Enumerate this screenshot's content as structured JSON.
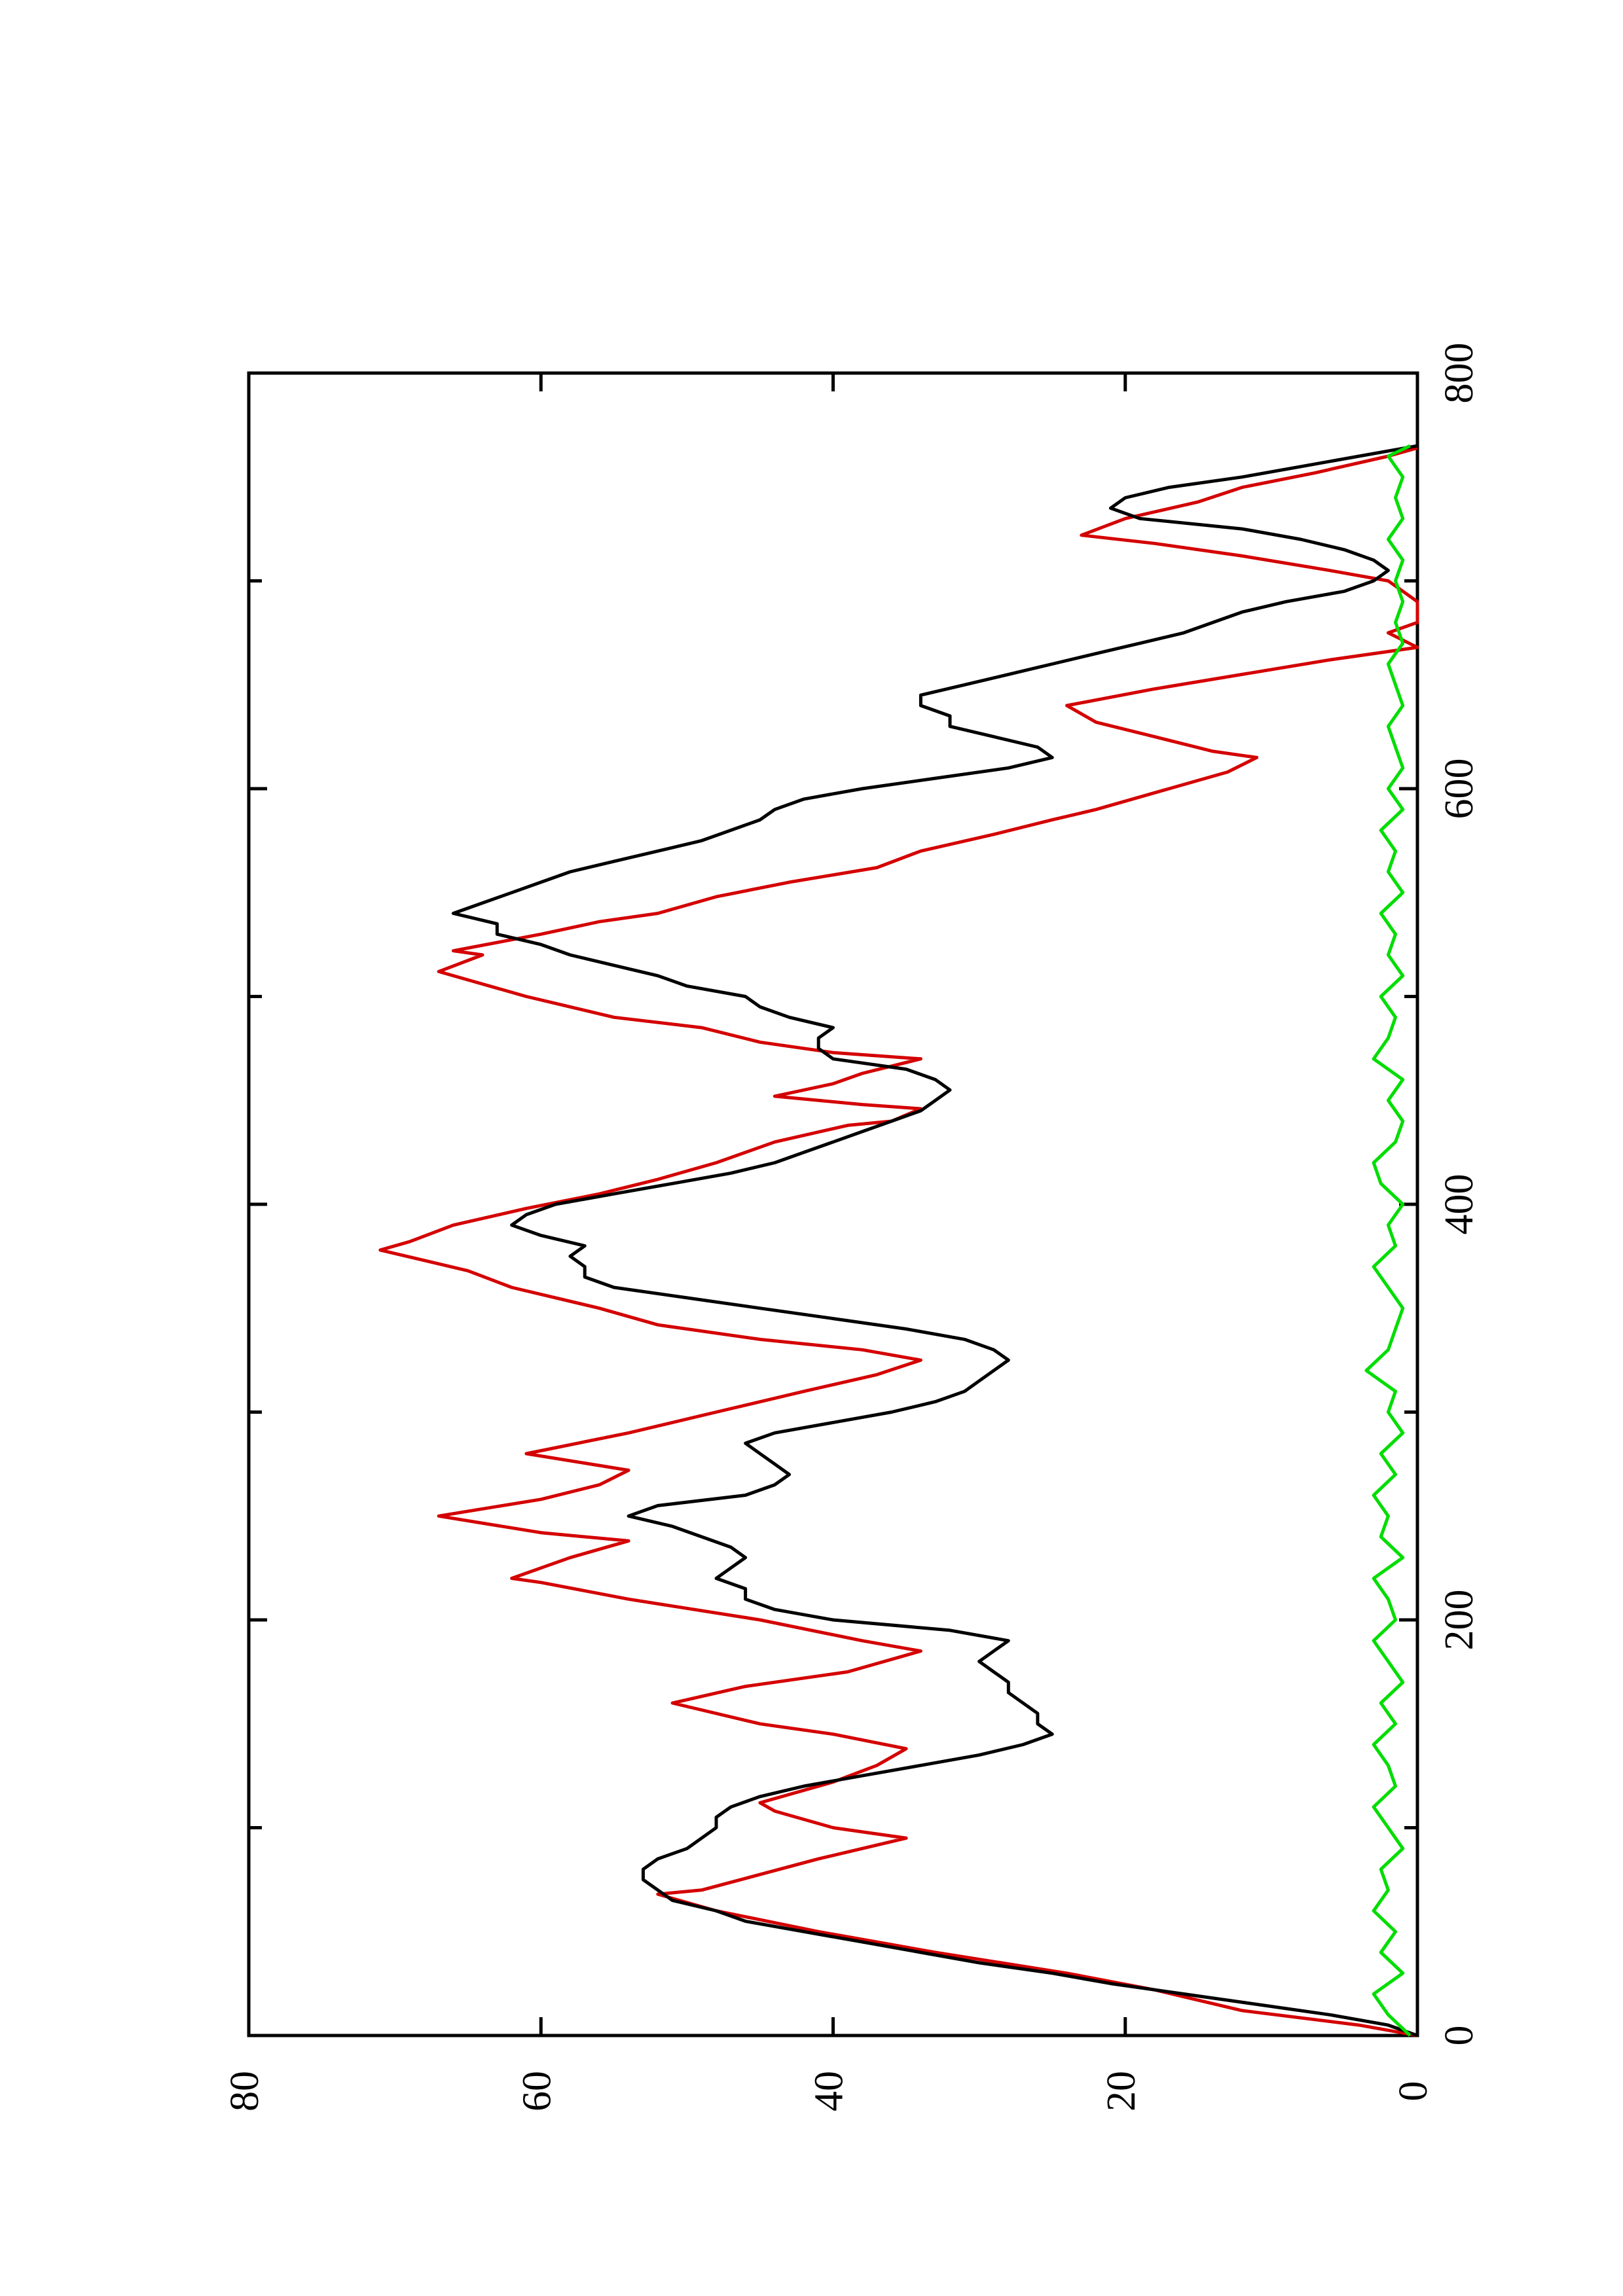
{
  "chart_data": {
    "type": "line",
    "title": "",
    "xlabel": "",
    "ylabel": "",
    "orientation": "rotated 90 degrees counter-clockwise (page landscape plot)",
    "xlim": [
      0,
      800
    ],
    "ylim": [
      0,
      80
    ],
    "x_ticks": [
      0,
      200,
      400,
      600,
      800
    ],
    "x_tick_labels": [
      "0",
      "200",
      "400",
      "600",
      "800"
    ],
    "y_ticks": [
      0,
      20,
      40,
      60,
      80
    ],
    "y_tick_labels": [
      "0",
      "20",
      "40",
      "60",
      "80"
    ],
    "grid": false,
    "legend": "none",
    "series": [
      {
        "color": "#d40000",
        "style": "step",
        "x": [
          0,
          5,
          12,
          22,
          30,
          40,
          50,
          60,
          68,
          70,
          85,
          95,
          100,
          108,
          112,
          122,
          130,
          138,
          145,
          150,
          160,
          168,
          175,
          185,
          190,
          200,
          210,
          218,
          220,
          230,
          238,
          242,
          250,
          258,
          265,
          272,
          280,
          290,
          300,
          310,
          318,
          325,
          330,
          335,
          342,
          350,
          360,
          368,
          378,
          382,
          390,
          398,
          405,
          412,
          420,
          430,
          438,
          440,
          446,
          448,
          452,
          458,
          463,
          470,
          473,
          478,
          485,
          490,
          500,
          508,
          512,
          520,
          522,
          530,
          536,
          540,
          548,
          555,
          562,
          570,
          578,
          585,
          590,
          600,
          608,
          615,
          618,
          625,
          632,
          640,
          648,
          655,
          662,
          668,
          675,
          680,
          690,
          700,
          705,
          712,
          718,
          722,
          730,
          738,
          745,
          752,
          760,
          764
        ],
        "y": [
          0,
          4,
          12,
          18,
          24,
          33,
          41,
          48,
          52,
          49,
          41,
          35,
          40,
          44,
          45,
          40,
          37,
          35,
          40,
          45,
          51,
          46,
          39,
          34,
          38,
          45,
          54,
          60,
          62,
          58,
          54,
          60,
          67,
          60,
          56,
          54,
          61,
          54,
          48,
          42,
          37,
          34,
          38,
          45,
          52,
          56,
          62,
          65,
          71,
          69,
          66,
          61,
          56,
          52,
          48,
          44,
          39,
          36,
          34,
          38,
          44,
          40,
          38,
          34,
          40,
          45,
          49,
          55,
          61,
          65,
          67,
          64,
          66,
          60,
          56,
          52,
          48,
          43,
          37,
          34,
          29,
          25,
          22,
          17,
          13,
          11,
          14,
          18,
          22,
          24,
          18,
          12,
          6,
          0,
          2,
          0,
          0,
          2,
          6,
          12,
          18,
          23,
          20,
          15,
          12,
          7,
          2,
          0
        ]
      },
      {
        "color": "#000000",
        "style": "line",
        "x": [
          0,
          5,
          10,
          15,
          20,
          25,
          30,
          35,
          40,
          45,
          50,
          55,
          60,
          65,
          70,
          75,
          80,
          85,
          90,
          95,
          100,
          105,
          110,
          115,
          120,
          125,
          130,
          135,
          140,
          145,
          150,
          155,
          160,
          165,
          170,
          175,
          180,
          185,
          190,
          195,
          200,
          205,
          210,
          215,
          220,
          225,
          230,
          235,
          240,
          245,
          250,
          255,
          260,
          265,
          270,
          275,
          280,
          285,
          290,
          295,
          300,
          305,
          310,
          315,
          320,
          325,
          330,
          335,
          340,
          345,
          350,
          355,
          360,
          365,
          370,
          375,
          380,
          385,
          390,
          395,
          400,
          405,
          410,
          415,
          420,
          425,
          430,
          435,
          440,
          445,
          450,
          455,
          460,
          465,
          470,
          475,
          480,
          485,
          490,
          495,
          500,
          505,
          510,
          515,
          520,
          525,
          530,
          535,
          540,
          545,
          550,
          555,
          560,
          565,
          570,
          575,
          580,
          585,
          590,
          595,
          600,
          605,
          610,
          615,
          620,
          625,
          630,
          635,
          640,
          645,
          650,
          655,
          660,
          665,
          670,
          675,
          680,
          685,
          690,
          695,
          700,
          705,
          710,
          715,
          720,
          725,
          730,
          735,
          740,
          745,
          750,
          755,
          760,
          765
        ],
        "y": [
          0,
          2,
          6,
          11,
          16,
          21,
          25,
          30,
          34,
          38,
          42,
          46,
          48,
          51,
          52,
          53,
          53,
          52,
          50,
          49,
          48,
          48,
          47,
          45,
          42,
          38,
          34,
          30,
          27,
          25,
          26,
          26,
          27,
          28,
          28,
          29,
          30,
          29,
          28,
          32,
          40,
          44,
          46,
          46,
          48,
          47,
          46,
          47,
          49,
          51,
          54,
          52,
          46,
          44,
          43,
          44,
          45,
          46,
          44,
          40,
          36,
          33,
          31,
          30,
          29,
          28,
          29,
          31,
          35,
          40,
          45,
          50,
          55,
          57,
          57,
          58,
          57,
          60,
          62,
          61,
          59,
          55,
          51,
          47,
          44,
          42,
          40,
          38,
          36,
          34,
          33,
          32,
          33,
          35,
          40,
          41,
          41,
          40,
          43,
          45,
          46,
          50,
          52,
          55,
          58,
          60,
          63,
          63,
          66,
          64,
          62,
          60,
          58,
          55,
          52,
          49,
          47,
          45,
          44,
          42,
          38,
          33,
          28,
          25,
          26,
          29,
          32,
          32,
          34,
          34,
          31,
          28,
          25,
          22,
          19,
          16,
          14,
          12,
          9,
          5,
          3,
          2,
          3,
          5,
          8,
          12,
          19,
          21,
          20,
          17,
          12,
          8,
          4,
          0
        ]
      },
      {
        "color": "#00dd00",
        "style": "line",
        "x": [
          0,
          10,
          20,
          30,
          40,
          50,
          60,
          70,
          80,
          90,
          100,
          110,
          120,
          130,
          140,
          150,
          160,
          170,
          180,
          190,
          200,
          210,
          220,
          230,
          240,
          250,
          260,
          270,
          280,
          290,
          300,
          310,
          320,
          330,
          340,
          350,
          360,
          370,
          380,
          390,
          400,
          410,
          420,
          430,
          440,
          450,
          460,
          470,
          480,
          490,
          500,
          510,
          520,
          530,
          540,
          550,
          560,
          570,
          580,
          590,
          600,
          610,
          620,
          630,
          640,
          650,
          660,
          670,
          680,
          690,
          700,
          710,
          720,
          730,
          740,
          750,
          760,
          765
        ],
        "y": [
          0.5,
          2,
          3,
          1,
          2.5,
          1.5,
          3,
          2,
          2.5,
          1,
          2,
          3,
          1.5,
          2,
          3,
          1.5,
          2.5,
          1,
          2,
          3,
          1.5,
          2,
          3,
          1,
          2.5,
          2,
          3,
          1.5,
          2.5,
          1,
          2,
          1.5,
          3.5,
          2,
          1.5,
          1,
          2,
          3,
          1.5,
          2,
          1,
          2.5,
          3,
          1.5,
          1,
          2,
          1,
          3,
          2,
          1.5,
          2.5,
          1,
          2,
          1.5,
          2.5,
          1,
          2,
          1.5,
          2.5,
          1,
          2,
          1,
          1.5,
          2,
          1,
          1.5,
          2,
          1,
          1.5,
          1,
          1.5,
          1,
          2,
          1,
          1.5,
          1,
          2,
          0.5
        ]
      }
    ]
  }
}
